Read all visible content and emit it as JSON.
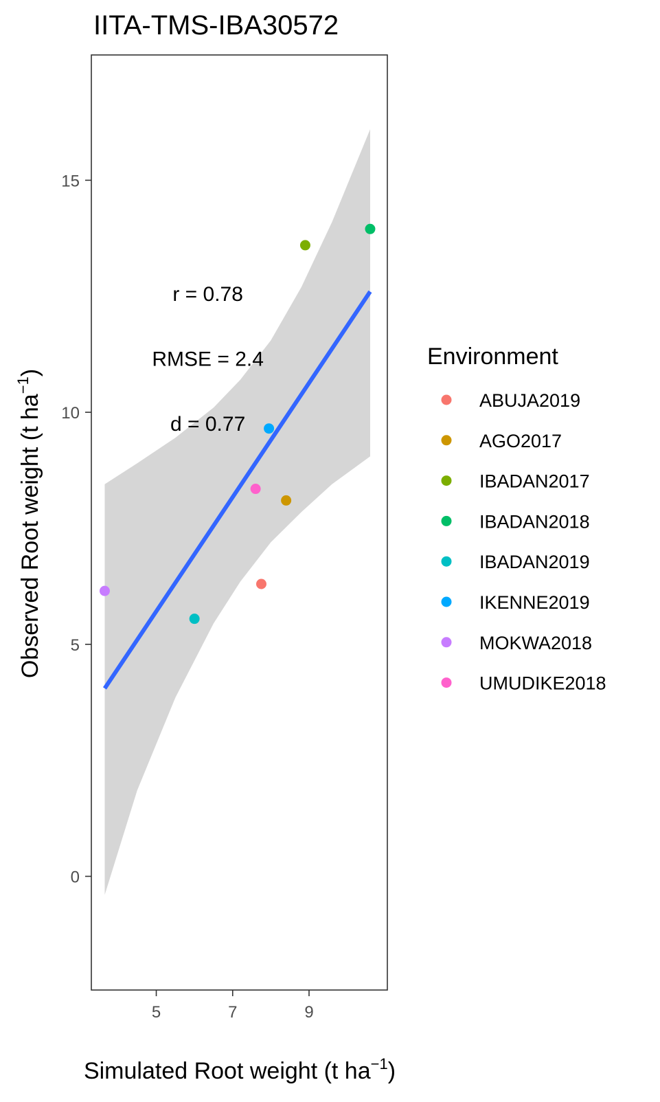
{
  "chart_data": {
    "type": "scatter",
    "title": "IITA-TMS-IBA30572",
    "xlabel": {
      "main": "Simulated Root weight (t ha",
      "sup": "−1",
      "close": ")"
    },
    "ylabel": {
      "main": "Observed Root weight (t ha",
      "sup": "−1",
      "close": ")"
    },
    "xlim": [
      3.3,
      11.05
    ],
    "ylim": [
      -2.45,
      17.7
    ],
    "xticks": [
      5,
      7,
      9
    ],
    "yticks": [
      0,
      5,
      10,
      15
    ],
    "grid": false,
    "legend": {
      "title": "Environment",
      "position": "right",
      "entries": [
        {
          "name": "ABUJA2019",
          "color": "#F8766D"
        },
        {
          "name": "AGO2017",
          "color": "#CD9600"
        },
        {
          "name": "IBADAN2017",
          "color": "#7CAE00"
        },
        {
          "name": "IBADAN2018",
          "color": "#00BE67"
        },
        {
          "name": "IBADAN2019",
          "color": "#00BFC4"
        },
        {
          "name": "IKENNE2019",
          "color": "#00A9FF"
        },
        {
          "name": "MOKWA2018",
          "color": "#C77CFF"
        },
        {
          "name": "UMUDIKE2018",
          "color": "#FF61CC"
        }
      ]
    },
    "points": [
      {
        "environment": "ABUJA2019",
        "x": 7.75,
        "y": 6.3
      },
      {
        "environment": "AGO2017",
        "x": 8.4,
        "y": 8.1
      },
      {
        "environment": "IBADAN2017",
        "x": 8.9,
        "y": 13.6
      },
      {
        "environment": "IBADAN2018",
        "x": 10.6,
        "y": 13.95
      },
      {
        "environment": "IBADAN2019",
        "x": 6.0,
        "y": 5.55
      },
      {
        "environment": "IKENNE2019",
        "x": 7.95,
        "y": 9.65
      },
      {
        "environment": "MOKWA2018",
        "x": 3.65,
        "y": 6.15
      },
      {
        "environment": "UMUDIKE2018",
        "x": 7.6,
        "y": 8.35
      }
    ],
    "fit": {
      "method": "lm",
      "color": "#3366FF",
      "line": [
        {
          "x": 3.65,
          "y": 4.05
        },
        {
          "x": 10.6,
          "y": 12.6
        }
      ],
      "ci_band": [
        {
          "x": 3.65,
          "lower": -0.4,
          "upper": 8.45
        },
        {
          "x": 4.5,
          "lower": 1.85,
          "upper": 8.9
        },
        {
          "x": 5.5,
          "lower": 3.85,
          "upper": 9.45
        },
        {
          "x": 6.5,
          "lower": 5.45,
          "upper": 10.1
        },
        {
          "x": 7.2,
          "lower": 6.35,
          "upper": 10.7
        },
        {
          "x": 8.0,
          "lower": 7.2,
          "upper": 11.55
        },
        {
          "x": 8.8,
          "lower": 7.85,
          "upper": 12.7
        },
        {
          "x": 9.6,
          "lower": 8.45,
          "upper": 14.1
        },
        {
          "x": 10.6,
          "lower": 9.05,
          "upper": 16.1
        }
      ]
    },
    "annotations": [
      {
        "text": "r = 0.78",
        "x": 6.35,
        "y": 12.55
      },
      {
        "text": "RMSE = 2.4",
        "x": 6.35,
        "y": 11.15
      },
      {
        "text": "d = 0.77",
        "x": 6.35,
        "y": 9.75
      }
    ]
  }
}
